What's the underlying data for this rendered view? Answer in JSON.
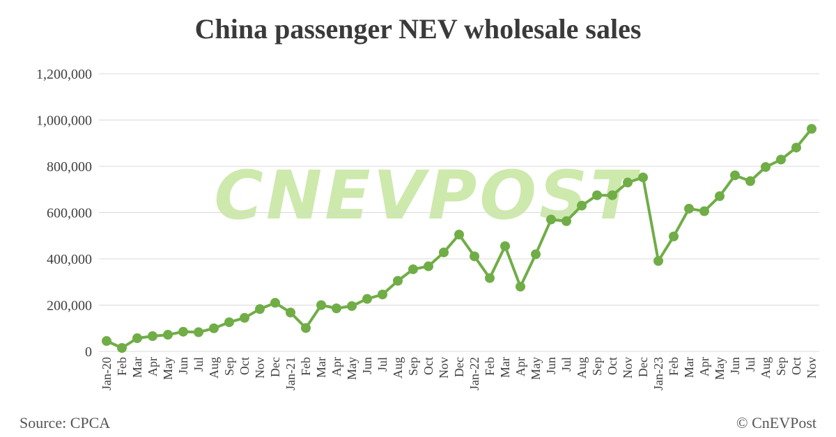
{
  "chart_data": {
    "type": "line",
    "title": "China passenger NEV wholesale sales",
    "xlabel": "",
    "ylabel": "",
    "ylim": [
      0,
      1200000
    ],
    "yticks": [
      "0",
      "200,000",
      "400,000",
      "600,000",
      "800,000",
      "1,000,000",
      "1,200,000"
    ],
    "grid": true,
    "legend": "none",
    "categories": [
      "Jan-20",
      "Feb",
      "Mar",
      "Apr",
      "May",
      "Jun",
      "Jul",
      "Aug",
      "Sep",
      "Oct",
      "Nov",
      "Dec",
      "Jan-21",
      "Feb",
      "Mar",
      "Apr",
      "May",
      "Jun",
      "Jul",
      "Aug",
      "Sep",
      "Oct",
      "Nov",
      "Dec",
      "Jan-22",
      "Feb",
      "Mar",
      "Apr",
      "May",
      "Jun",
      "Jul",
      "Aug",
      "Sep",
      "Oct",
      "Nov",
      "Dec",
      "Jan-23",
      "Feb",
      "Mar",
      "Apr",
      "May",
      "Jun",
      "Jul",
      "Aug",
      "Sep",
      "Oct",
      "Nov"
    ],
    "series": [
      {
        "color": "#70ad47",
        "values": [
          45000,
          15000,
          57000,
          66000,
          72000,
          85000,
          83000,
          100000,
          126000,
          145000,
          183000,
          210000,
          168000,
          101000,
          200000,
          186000,
          196000,
          227000,
          246000,
          305000,
          355000,
          368000,
          428000,
          505000,
          411000,
          317000,
          455000,
          280000,
          420000,
          570000,
          563000,
          630000,
          675000,
          675000,
          730000,
          752000,
          391000,
          497000,
          617000,
          606000,
          671000,
          761000,
          736000,
          797000,
          829000,
          881000,
          962000
        ]
      }
    ]
  },
  "watermark": "CNEVPOST",
  "footer": {
    "source": "Source: CPCA",
    "credit": "© CnEVPost"
  }
}
